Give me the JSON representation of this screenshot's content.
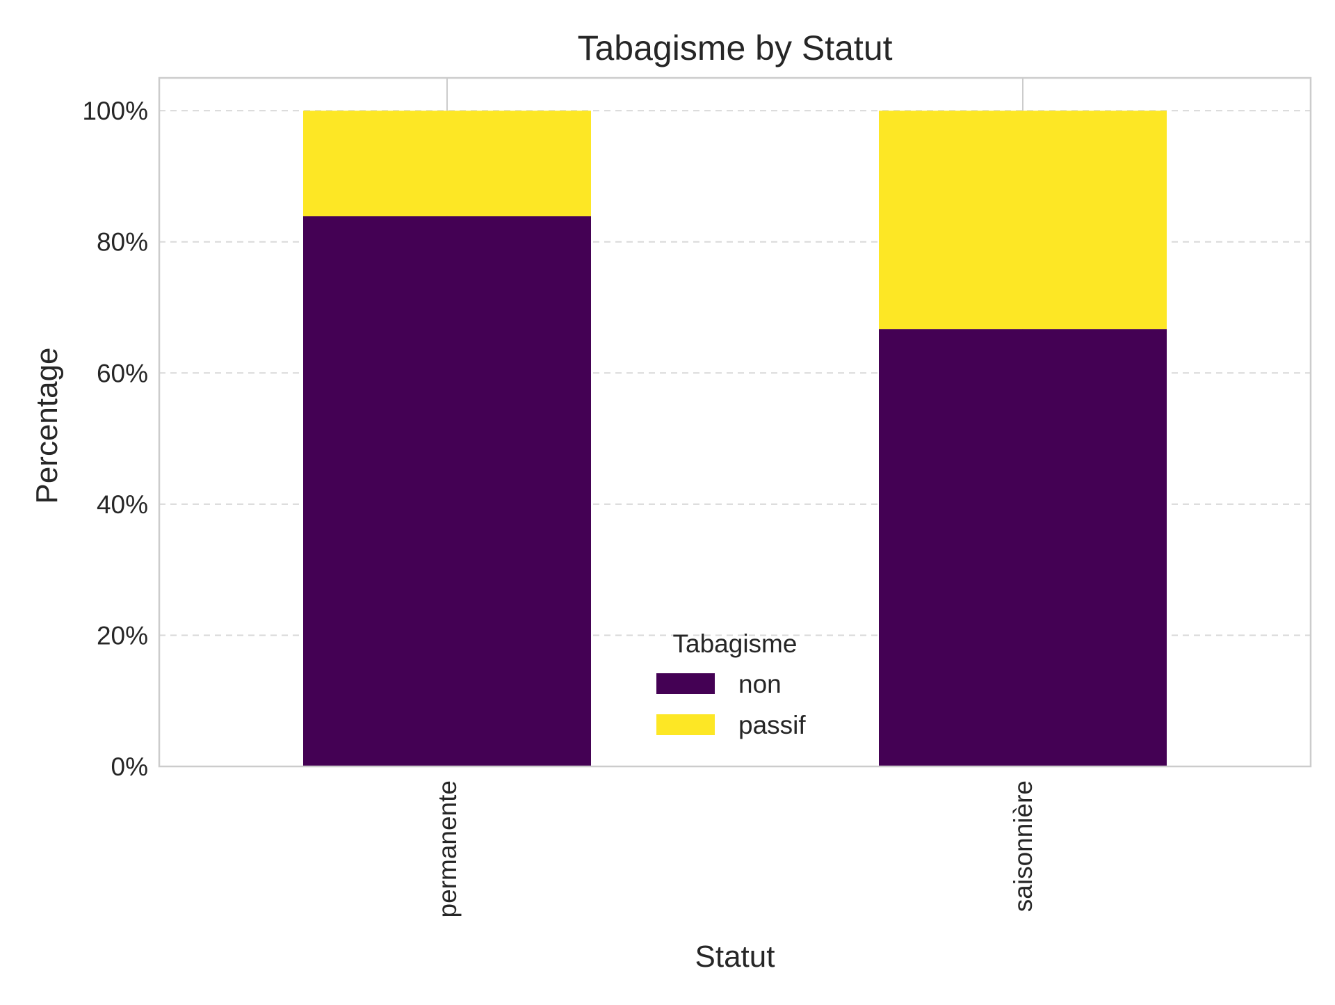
{
  "chart_data": {
    "type": "bar",
    "stacked": true,
    "title": "Tabagisme by Statut",
    "xlabel": "Statut",
    "ylabel": "Percentage",
    "categories": [
      "permanente",
      "saisonnière"
    ],
    "series": [
      {
        "name": "non",
        "color": "#440154",
        "values": [
          83.9,
          66.7
        ]
      },
      {
        "name": "passif",
        "color": "#fde725",
        "values": [
          16.1,
          33.3
        ]
      }
    ],
    "ylim": [
      0,
      105
    ],
    "yticks": [
      0,
      20,
      40,
      60,
      80,
      100
    ],
    "ytick_labels": [
      "0%",
      "20%",
      "40%",
      "60%",
      "80%",
      "100%"
    ],
    "grid": "y-dashed",
    "legend": {
      "title": "Tabagisme",
      "placement": "lower-center"
    }
  }
}
